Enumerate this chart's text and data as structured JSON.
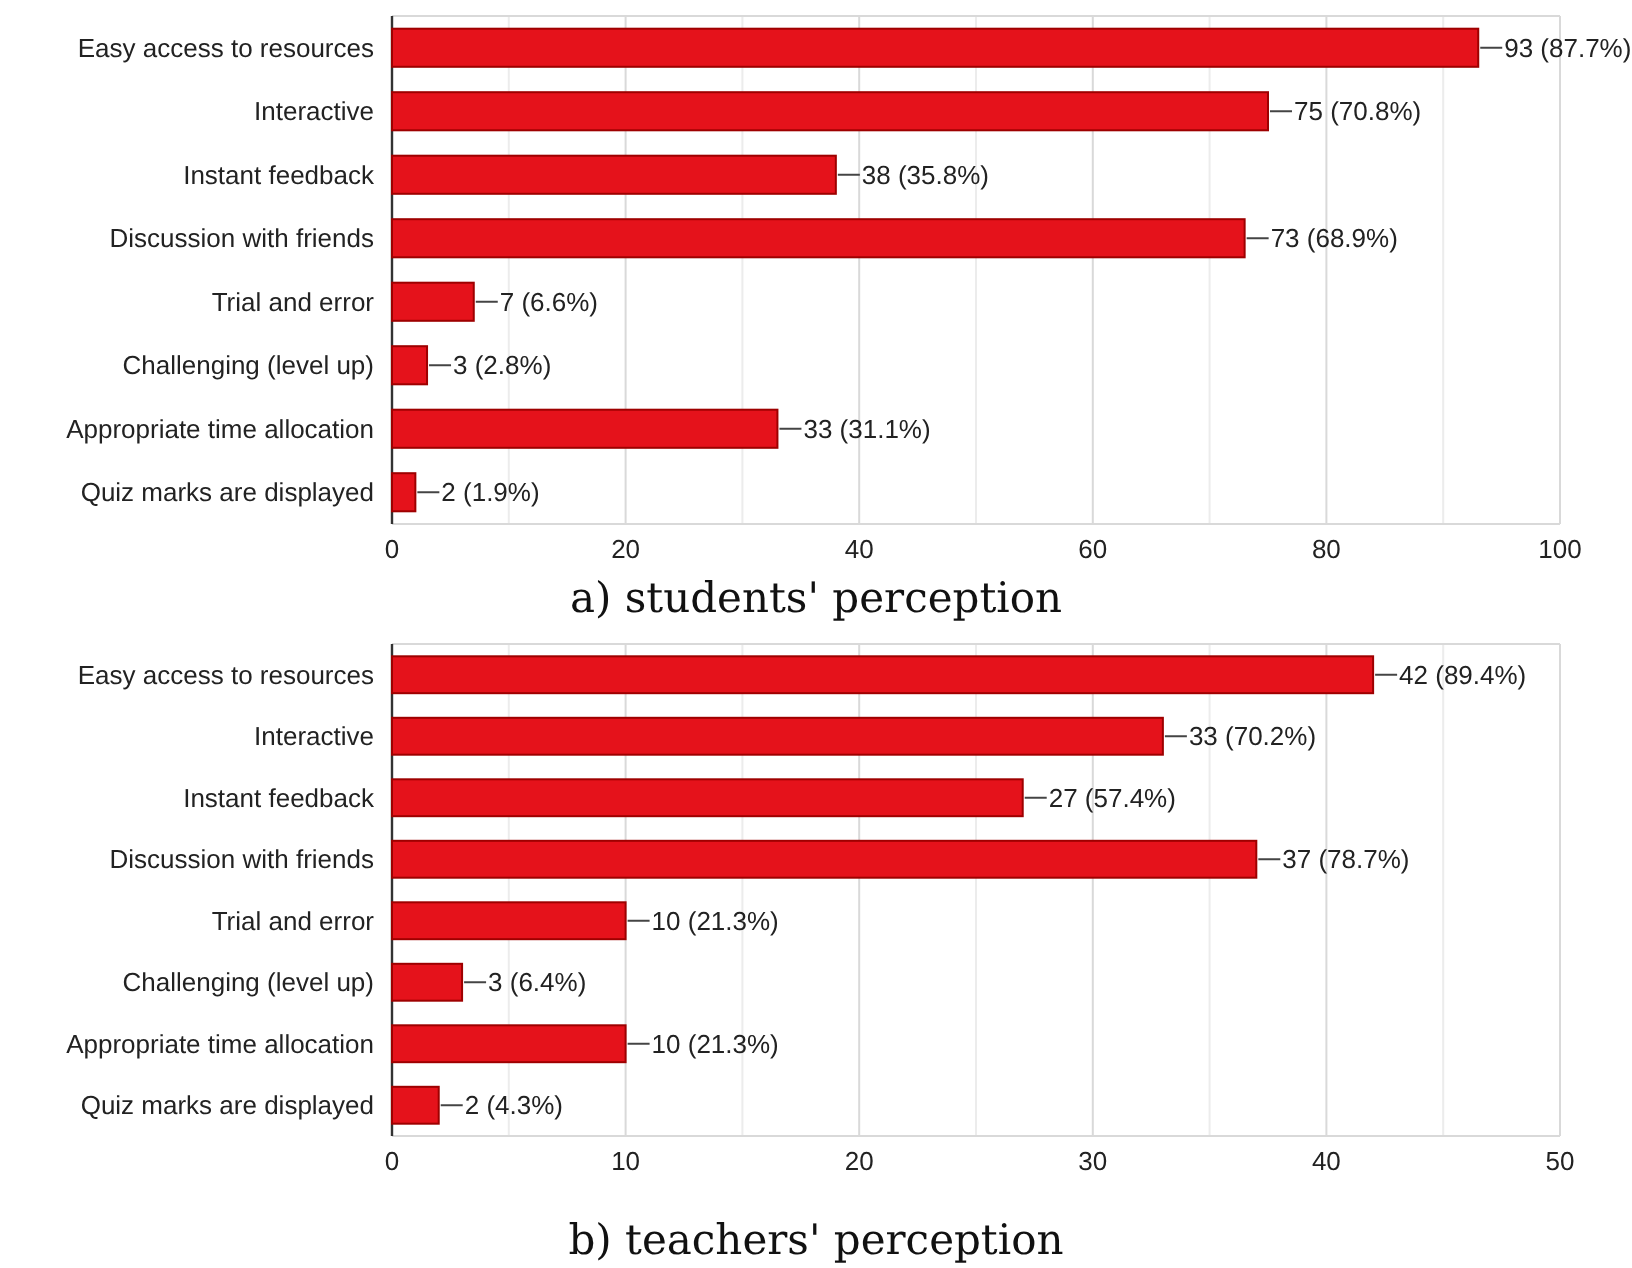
{
  "chart_data": [
    {
      "type": "bar",
      "orientation": "horizontal",
      "title": "a) students' perception",
      "categories": [
        "Easy access to resources",
        "Interactive",
        "Instant feedback",
        "Discussion with friends",
        "Trial and error",
        "Challenging (level up)",
        "Appropriate time allocation",
        "Quiz marks are displayed"
      ],
      "values": [
        93,
        75,
        38,
        73,
        7,
        3,
        33,
        2
      ],
      "value_labels": [
        "93 (87.7%)",
        "75 (70.8%)",
        "38 (35.8%)",
        "73 (68.9%)",
        "7 (6.6%)",
        "3 (2.8%)",
        "33 (31.1%)",
        "2 (1.9%)"
      ],
      "color": "#e5121b",
      "xlim": [
        0,
        100
      ],
      "xticks": [
        0,
        {
          "value": 10,
          "label": null
        },
        20,
        {
          "value": 30,
          "label": null
        },
        40,
        {
          "value": 50,
          "label": null
        },
        60,
        {
          "value": 70,
          "label": null
        },
        80,
        {
          "value": 90,
          "label": null
        },
        100
      ],
      "grid": "x"
    },
    {
      "type": "bar",
      "orientation": "horizontal",
      "title": "b) teachers' perception",
      "categories": [
        "Easy access to resources",
        "Interactive",
        "Instant feedback",
        "Discussion with friends",
        "Trial and error",
        "Challenging (level up)",
        "Appropriate time allocation",
        "Quiz marks are displayed"
      ],
      "values": [
        42,
        33,
        27,
        37,
        10,
        3,
        10,
        2
      ],
      "value_labels": [
        "42 (89.4%)",
        "33 (70.2%)",
        "27 (57.4%)",
        "37 (78.7%)",
        "10 (21.3%)",
        "3 (6.4%)",
        "10 (21.3%)",
        "2 (4.3%)"
      ],
      "color": "#e5121b",
      "xlim": [
        0,
        50
      ],
      "xticks": [
        0,
        {
          "value": 5,
          "label": null
        },
        10,
        {
          "value": 15,
          "label": null
        },
        20,
        {
          "value": 25,
          "label": null
        },
        30,
        {
          "value": 35,
          "label": null
        },
        40,
        {
          "value": 45,
          "label": null
        },
        50
      ],
      "grid": "x"
    }
  ]
}
